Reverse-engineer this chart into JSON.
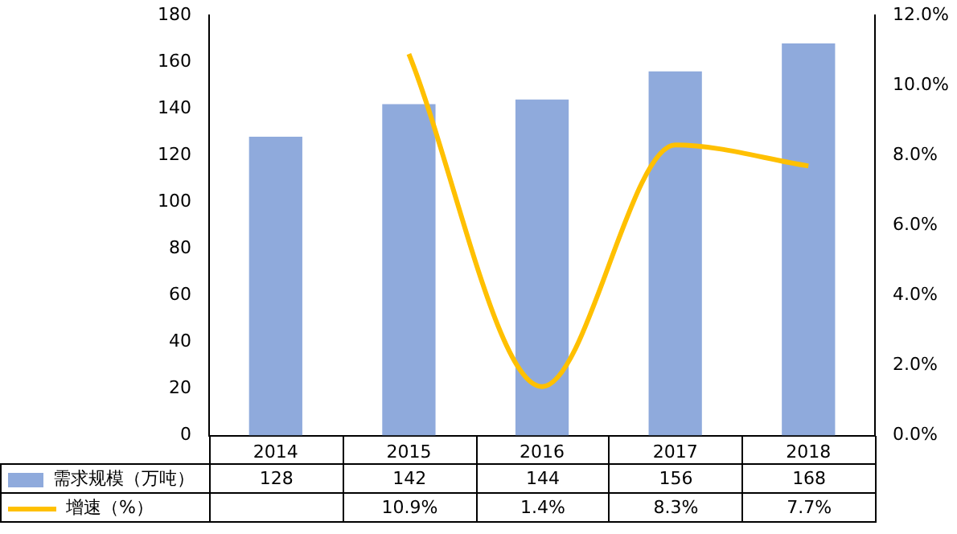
{
  "chart_data": {
    "type": "bar",
    "categories": [
      "2014",
      "2015",
      "2016",
      "2017",
      "2018"
    ],
    "series": [
      {
        "name": "需求规模（万吨）",
        "color": "#8faadc",
        "values": [
          128,
          142,
          144,
          156,
          168
        ],
        "value_labels": [
          "128",
          "142",
          "144",
          "156",
          "168"
        ]
      },
      {
        "name": "增速（%）",
        "type": "line",
        "axis": "y2",
        "color": "#ffc000",
        "values": [
          null,
          10.9,
          1.4,
          8.3,
          7.7
        ],
        "value_labels": [
          null,
          "10.9%",
          "1.4%",
          "8.3%",
          "7.7%"
        ]
      }
    ],
    "ylim": [
      0,
      180
    ],
    "yticks": [
      0,
      20,
      40,
      60,
      80,
      100,
      120,
      140,
      160,
      180
    ],
    "y2lim": [
      0,
      12
    ],
    "y2ticks": [
      {
        "value": 0,
        "label": "0.0%"
      },
      {
        "value": 2,
        "label": "2.0%"
      },
      {
        "value": 4,
        "label": "4.0%"
      },
      {
        "value": 6,
        "label": "6.0%"
      },
      {
        "value": 8,
        "label": "8.0%"
      },
      {
        "value": 10,
        "label": "10.0%"
      },
      {
        "value": 12,
        "label": "12.0%"
      }
    ],
    "grid": false,
    "legend": "bottom",
    "marker": "none",
    "line_style": "solid"
  }
}
